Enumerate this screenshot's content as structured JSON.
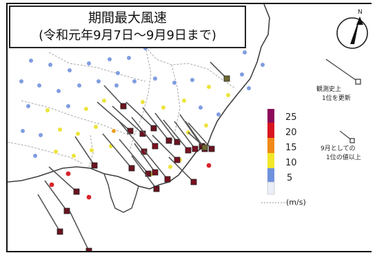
{
  "title": {
    "line1": "期間最大風速",
    "line2": "(令和元年9月7日～9月9日まで)"
  },
  "compass": {
    "label": "N"
  },
  "scale_legend": {
    "labels": [
      "25",
      "20",
      "15",
      "10",
      "5"
    ],
    "unit": "(m/s)",
    "colors": [
      "#8b0a5a",
      "#d8151f",
      "#f08a18",
      "#f2e62a",
      "#6f92dd",
      "#e9eef7"
    ]
  },
  "symbol_notes": {
    "record_updated": {
      "line1": "観測史上",
      "line2": "1位を更新"
    },
    "september_record": {
      "line1": "9月としての",
      "line2": "1位の値以上"
    }
  },
  "colors": {
    "coast": "#3f3f3f",
    "border": "#9a9a9a",
    "arrow": "#555555"
  }
}
